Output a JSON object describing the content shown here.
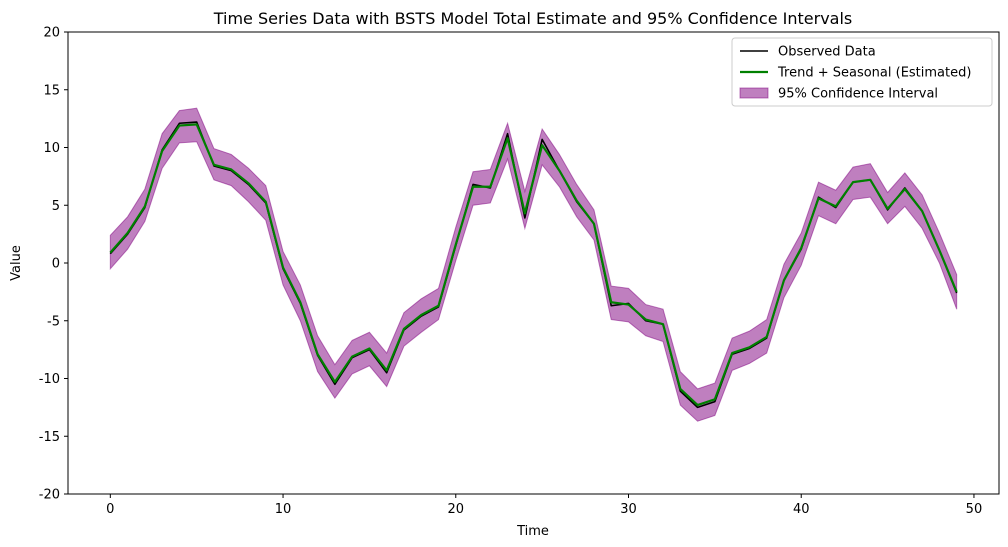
{
  "chart_data": {
    "type": "line",
    "title": "Time Series Data with BSTS Model Total Estimate and 95% Confidence Intervals",
    "xlabel": "Time",
    "ylabel": "Value",
    "xlim": [
      -2.45,
      51.45
    ],
    "ylim": [
      -20,
      20
    ],
    "xticks": [
      0,
      10,
      20,
      30,
      40,
      50
    ],
    "yticks": [
      -20,
      -15,
      -10,
      -5,
      0,
      5,
      10,
      15,
      20
    ],
    "legend_position": "top-right",
    "x": [
      0,
      1,
      2,
      3,
      4,
      5,
      6,
      7,
      8,
      9,
      10,
      11,
      12,
      13,
      14,
      15,
      16,
      17,
      18,
      19,
      20,
      21,
      22,
      23,
      24,
      25,
      26,
      27,
      28,
      29,
      30,
      31,
      32,
      33,
      34,
      35,
      36,
      37,
      38,
      39,
      40,
      41,
      42,
      43,
      44,
      45,
      46,
      47,
      48,
      49
    ],
    "series": [
      {
        "name": "Observed Data",
        "color": "#000000",
        "values": [
          0.8,
          2.5,
          4.8,
          9.8,
          12.1,
          12.2,
          8.4,
          8.0,
          6.8,
          5.2,
          -0.5,
          -3.5,
          -8.0,
          -10.5,
          -8.2,
          -7.5,
          -9.5,
          -5.8,
          -4.6,
          -3.8,
          1.5,
          6.8,
          6.5,
          11.2,
          3.9,
          10.7,
          8.0,
          5.3,
          3.4,
          -3.7,
          -3.5,
          -5.0,
          -5.3,
          -11.1,
          -12.5,
          -12.0,
          -7.9,
          -7.4,
          -6.5,
          -1.5,
          1.2,
          5.7,
          4.8,
          7.0,
          7.2,
          4.6,
          6.5,
          4.5,
          1.1,
          -2.6
        ]
      },
      {
        "name": "Trend + Seasonal (Estimated)",
        "color": "#008000",
        "values": [
          0.9,
          2.6,
          4.9,
          9.7,
          11.9,
          12.0,
          8.5,
          8.1,
          6.9,
          5.3,
          -0.4,
          -3.4,
          -7.9,
          -10.3,
          -8.1,
          -7.4,
          -9.3,
          -5.7,
          -4.5,
          -3.7,
          1.6,
          6.6,
          6.6,
          10.8,
          4.3,
          10.2,
          8.0,
          5.4,
          3.4,
          -3.4,
          -3.6,
          -4.9,
          -5.3,
          -10.9,
          -12.3,
          -11.8,
          -7.8,
          -7.3,
          -6.4,
          -1.5,
          1.3,
          5.6,
          4.9,
          7.0,
          7.2,
          4.7,
          6.4,
          4.5,
          1.1,
          -2.5
        ]
      }
    ],
    "confidence_interval": {
      "name": "95% Confidence Interval",
      "color": "#800080",
      "lower": [
        -0.5,
        1.2,
        3.6,
        8.2,
        10.4,
        10.5,
        7.2,
        6.7,
        5.3,
        3.7,
        -1.9,
        -5.0,
        -9.4,
        -11.7,
        -9.6,
        -8.9,
        -10.7,
        -7.2,
        -6.0,
        -4.9,
        0.2,
        5.0,
        5.2,
        9.0,
        3.0,
        8.5,
        6.6,
        4.0,
        2.0,
        -4.9,
        -5.1,
        -6.3,
        -6.8,
        -12.3,
        -13.7,
        -13.2,
        -9.3,
        -8.7,
        -7.8,
        -3.0,
        -0.2,
        4.1,
        3.4,
        5.5,
        5.7,
        3.4,
        4.9,
        3.0,
        0.0,
        -4.0
      ],
      "upper": [
        2.4,
        4.0,
        6.4,
        11.2,
        13.2,
        13.4,
        9.9,
        9.4,
        8.2,
        6.7,
        1.0,
        -1.9,
        -6.3,
        -8.8,
        -6.7,
        -6.0,
        -7.8,
        -4.3,
        -3.1,
        -2.2,
        3.1,
        7.9,
        8.1,
        12.1,
        6.2,
        11.6,
        9.4,
        6.8,
        4.6,
        -2.0,
        -2.2,
        -3.6,
        -4.0,
        -9.4,
        -10.9,
        -10.4,
        -6.5,
        -5.9,
        -4.9,
        -0.1,
        2.6,
        7.0,
        6.3,
        8.3,
        8.6,
        6.1,
        7.8,
        5.9,
        2.6,
        -1.0
      ]
    },
    "legend": [
      "Observed Data",
      "Trend + Seasonal (Estimated)",
      "95% Confidence Interval"
    ]
  }
}
